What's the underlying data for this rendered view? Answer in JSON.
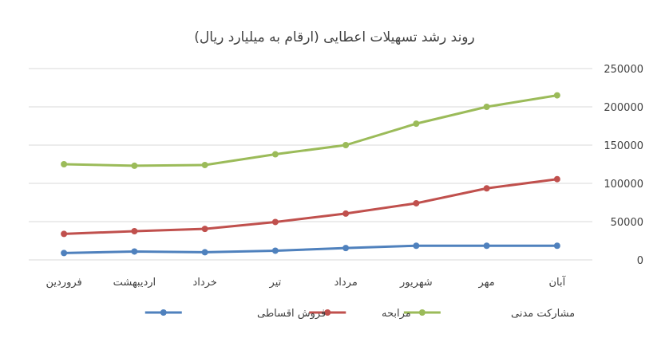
{
  "chart_data": {
    "type": "line",
    "title": "روند رشد تسهیلات اعطایی (ارقام به میلیارد ریال)",
    "xlabel": "",
    "ylabel": "",
    "categories": [
      "فروردین",
      "اردیبهشت",
      "خرداد",
      "تیر",
      "مرداد",
      "شهریور",
      "مهر",
      "آبان"
    ],
    "x_direction": "right-to-left",
    "y_axis_side": "right",
    "ylim": [
      0,
      250000
    ],
    "yticks": [
      0,
      50000,
      100000,
      150000,
      200000,
      250000
    ],
    "ytick_labels": [
      "0",
      "50000",
      "100000",
      "150000",
      "200000",
      "250000"
    ],
    "grid": true,
    "legend_position": "bottom",
    "series": [
      {
        "name": "مشارکت مدنی",
        "color": "#9bbb59",
        "values": [
          125000,
          123000,
          124000,
          138000,
          150000,
          178000,
          200000,
          215000
        ]
      },
      {
        "name": "مرابحه",
        "color": "#c0504d",
        "values": [
          34000,
          37500,
          40500,
          49500,
          60500,
          74000,
          93500,
          105500
        ]
      },
      {
        "name": "فروش اقساطی",
        "color": "#4f81bd",
        "values": [
          9000,
          11000,
          10000,
          12000,
          15500,
          18500,
          18500,
          18500
        ]
      }
    ]
  }
}
